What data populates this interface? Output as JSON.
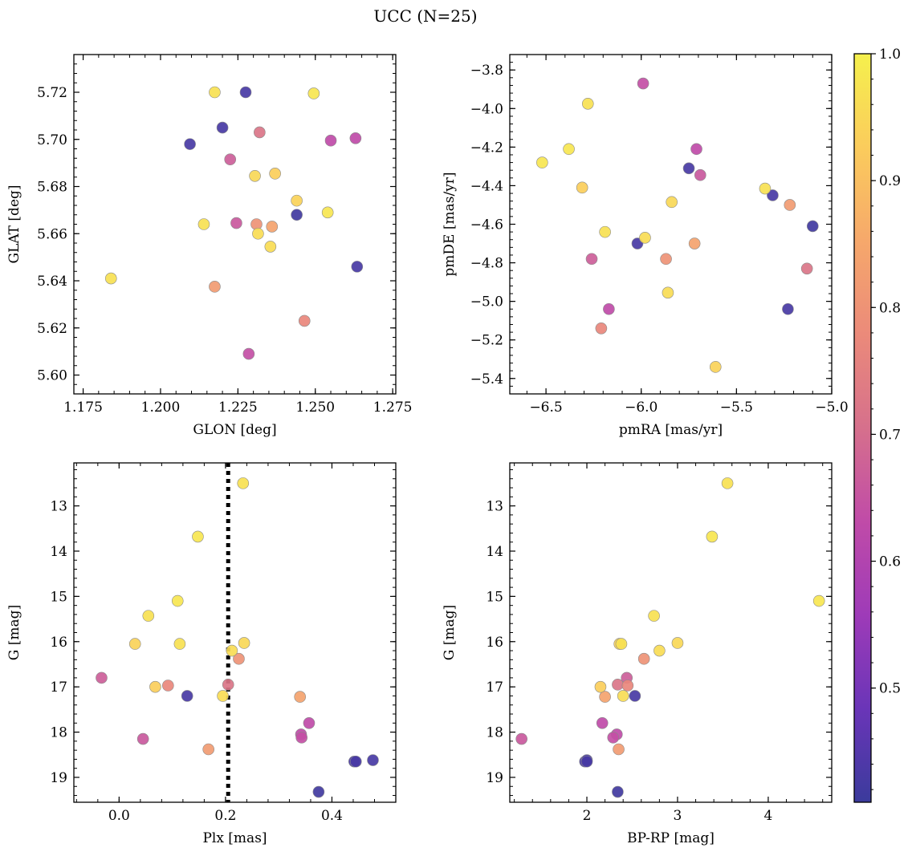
{
  "chart_data": {
    "title": "UCC (N=25)",
    "colorbar": {
      "min": 0.41,
      "max": 1.0,
      "ticks": [
        0.5,
        0.6,
        0.7,
        0.8,
        0.9,
        1.0
      ],
      "tick_labels": [
        "0.5",
        "0.6",
        "0.7",
        "0.8",
        "0.9",
        "1.0"
      ],
      "colormap": "plasma",
      "colors": [
        "#3b3b9c",
        "#6a35b8",
        "#9e3bb8",
        "#c04ba8",
        "#d6708c",
        "#eb8a7a",
        "#f6a86b",
        "#fbcc5c",
        "#f5f04d"
      ]
    },
    "points": [
      {
        "glon": 1.2175,
        "glat": 5.72,
        "pmra": -6.28,
        "pmde": -3.975,
        "plx": 0.233,
        "g": 12.5,
        "bprp": 3.55,
        "p": 0.97
      },
      {
        "glon": 1.2495,
        "glat": 5.7195,
        "pmra": -6.52,
        "pmde": -4.28,
        "plx": 0.148,
        "g": 13.68,
        "bprp": 3.38,
        "p": 0.98
      },
      {
        "glon": 1.2275,
        "glat": 5.72,
        "pmra": -5.75,
        "pmde": -4.31,
        "plx": 0.128,
        "g": 17.2,
        "bprp": 2.53,
        "p": 0.43
      },
      {
        "glon": 1.22,
        "glat": 5.705,
        "pmra": -6.02,
        "pmde": -4.7,
        "plx": 0.442,
        "g": 18.65,
        "bprp": 1.98,
        "p": 0.43
      },
      {
        "glon": 1.232,
        "glat": 5.703,
        "pmra": -5.13,
        "pmde": -4.83,
        "plx": 0.205,
        "g": 16.95,
        "bprp": 2.34,
        "p": 0.72
      },
      {
        "glon": 1.2095,
        "glat": 5.698,
        "pmra": -5.31,
        "pmde": -4.45,
        "plx": 0.477,
        "g": 18.62,
        "bprp": 2.0,
        "p": 0.43
      },
      {
        "glon": 1.263,
        "glat": 5.7005,
        "pmra": -5.71,
        "pmde": -4.21,
        "plx": 0.357,
        "g": 17.8,
        "bprp": 2.17,
        "p": 0.63
      },
      {
        "glon": 1.255,
        "glat": 5.6995,
        "pmra": -6.17,
        "pmde": -5.04,
        "plx": 0.342,
        "g": 18.05,
        "bprp": 2.33,
        "p": 0.63
      },
      {
        "glon": 1.2225,
        "glat": 5.6915,
        "pmra": -6.26,
        "pmde": -4.78,
        "plx": -0.033,
        "g": 16.8,
        "bprp": 2.44,
        "p": 0.67
      },
      {
        "glon": 1.2305,
        "glat": 5.6845,
        "pmra": -5.84,
        "pmde": -4.485,
        "plx": 0.235,
        "g": 16.03,
        "bprp": 3.0,
        "p": 0.95
      },
      {
        "glon": 1.237,
        "glat": 5.6855,
        "pmra": -6.31,
        "pmde": -4.41,
        "plx": 0.068,
        "g": 17.0,
        "bprp": 2.15,
        "p": 0.93
      },
      {
        "glon": 1.244,
        "glat": 5.674,
        "pmra": -5.61,
        "pmde": -5.34,
        "plx": 0.03,
        "g": 16.05,
        "bprp": 2.36,
        "p": 0.94
      },
      {
        "glon": 1.244,
        "glat": 5.668,
        "pmra": -5.1,
        "pmde": -4.61,
        "plx": 0.375,
        "g": 19.32,
        "bprp": 2.34,
        "p": 0.42
      },
      {
        "glon": 1.254,
        "glat": 5.669,
        "pmra": -6.38,
        "pmde": -4.21,
        "plx": 0.11,
        "g": 15.1,
        "bprp": 4.56,
        "p": 0.98
      },
      {
        "glon": 1.214,
        "glat": 5.664,
        "pmra": -6.19,
        "pmde": -4.64,
        "plx": 0.114,
        "g": 16.05,
        "bprp": 2.38,
        "p": 0.97
      },
      {
        "glon": 1.2245,
        "glat": 5.6645,
        "pmra": -5.69,
        "pmde": -4.345,
        "plx": 0.045,
        "g": 18.15,
        "bprp": 1.28,
        "p": 0.66
      },
      {
        "glon": 1.231,
        "glat": 5.664,
        "pmra": -5.87,
        "pmde": -4.78,
        "plx": 0.225,
        "g": 16.38,
        "bprp": 2.63,
        "p": 0.8
      },
      {
        "glon": 1.236,
        "glat": 5.663,
        "pmra": -5.72,
        "pmde": -4.7,
        "plx": 0.34,
        "g": 17.22,
        "bprp": 2.2,
        "p": 0.84
      },
      {
        "glon": 1.2315,
        "glat": 5.66,
        "pmra": -5.98,
        "pmde": -4.67,
        "plx": 0.212,
        "g": 16.2,
        "bprp": 2.8,
        "p": 0.96
      },
      {
        "glon": 1.2355,
        "glat": 5.6545,
        "pmra": -5.86,
        "pmde": -4.955,
        "plx": 0.195,
        "g": 17.2,
        "bprp": 2.4,
        "p": 0.96
      },
      {
        "glon": 1.2635,
        "glat": 5.646,
        "pmra": -5.23,
        "pmde": -5.04,
        "plx": 0.445,
        "g": 18.65,
        "bprp": 2.0,
        "p": 0.43
      },
      {
        "glon": 1.184,
        "glat": 5.641,
        "pmra": -5.35,
        "pmde": -4.415,
        "plx": 0.055,
        "g": 15.43,
        "bprp": 2.74,
        "p": 0.97
      },
      {
        "glon": 1.2175,
        "glat": 5.6375,
        "pmra": -5.22,
        "pmde": -4.5,
        "plx": 0.168,
        "g": 18.38,
        "bprp": 2.35,
        "p": 0.82
      },
      {
        "glon": 1.2465,
        "glat": 5.623,
        "pmra": -6.21,
        "pmde": -5.14,
        "plx": 0.092,
        "g": 16.97,
        "bprp": 2.45,
        "p": 0.77
      },
      {
        "glon": 1.2285,
        "glat": 5.609,
        "pmra": -5.99,
        "pmde": -3.87,
        "plx": 0.343,
        "g": 18.12,
        "bprp": 2.29,
        "p": 0.64
      }
    ],
    "panels": [
      {
        "type": "scatter",
        "xkey": "glon",
        "ykey": "glat",
        "xlabel": "GLON [deg]",
        "ylabel": "GLAT [deg]",
        "xlim": [
          1.172,
          1.276
        ],
        "ylim": [
          5.592,
          5.736
        ],
        "invert_y": false,
        "xticks": [
          1.175,
          1.2,
          1.225,
          1.25,
          1.275
        ],
        "xtick_labels": [
          "1.175",
          "1.200",
          "1.225",
          "1.250",
          "1.275"
        ],
        "yticks": [
          5.6,
          5.62,
          5.64,
          5.66,
          5.68,
          5.7,
          5.72
        ],
        "ytick_labels": [
          "5.60",
          "5.62",
          "5.64",
          "5.66",
          "5.68",
          "5.70",
          "5.72"
        ]
      },
      {
        "type": "scatter",
        "xkey": "pmra",
        "ykey": "pmde",
        "xlabel": "pmRA [mas/yr]",
        "ylabel": "pmDE [mas/yr]",
        "xlim": [
          -6.69,
          -5.0
        ],
        "ylim": [
          -5.48,
          -3.72
        ],
        "invert_y": false,
        "xticks": [
          -6.5,
          -6.0,
          -5.5,
          -5.0
        ],
        "xtick_labels": [
          "−6.5",
          "−6.0",
          "−5.5",
          "−5.0"
        ],
        "yticks": [
          -5.4,
          -5.2,
          -5.0,
          -4.8,
          -4.6,
          -4.4,
          -4.2,
          -4.0,
          -3.8
        ],
        "ytick_labels": [
          "−5.4",
          "−5.2",
          "−5.0",
          "−4.8",
          "−4.6",
          "−4.4",
          "−4.2",
          "−4.0",
          "−3.8"
        ]
      },
      {
        "type": "scatter",
        "xkey": "plx",
        "ykey": "g",
        "xlabel": "Plx [mas]",
        "ylabel": "G [mag]",
        "xlim": [
          -0.085,
          0.52
        ],
        "ylim": [
          12.05,
          19.55
        ],
        "invert_y": true,
        "vline": 0.205,
        "xticks": [
          0.0,
          0.2,
          0.4
        ],
        "xtick_labels": [
          "0.0",
          "0.2",
          "0.4"
        ],
        "yticks": [
          13,
          14,
          15,
          16,
          17,
          18,
          19
        ],
        "ytick_labels": [
          "13",
          "14",
          "15",
          "16",
          "17",
          "18",
          "19"
        ]
      },
      {
        "type": "scatter",
        "xkey": "bprp",
        "ykey": "g",
        "xlabel": "BP-RP [mag]",
        "ylabel": "G [mag]",
        "xlim": [
          1.15,
          4.7
        ],
        "ylim": [
          12.05,
          19.55
        ],
        "invert_y": true,
        "xticks": [
          2,
          3,
          4
        ],
        "xtick_labels": [
          "2",
          "3",
          "4"
        ],
        "yticks": [
          13,
          14,
          15,
          16,
          17,
          18,
          19
        ],
        "ytick_labels": [
          "13",
          "14",
          "15",
          "16",
          "17",
          "18",
          "19"
        ]
      }
    ]
  }
}
